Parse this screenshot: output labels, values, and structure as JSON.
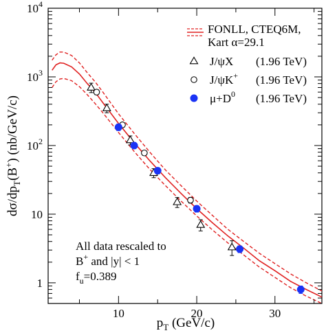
{
  "chart_data": {
    "type": "scatter",
    "xlabel": {
      "main": "p",
      "sub": "T",
      "rest": " (GeV/c)"
    },
    "ylabel": {
      "p1": "dσ/dp",
      "sub": "T",
      "p2": "(B",
      "sup": "+",
      "p3": ") (nb/GeV/c)"
    },
    "xlim": [
      1,
      36
    ],
    "ylim": [
      0.5,
      10000
    ],
    "yscale": "log",
    "x_ticks": [
      10,
      20,
      30
    ],
    "y_ticks": [
      {
        "value": 1,
        "base": "1",
        "exp": ""
      },
      {
        "value": 10,
        "base": "10",
        "exp": ""
      },
      {
        "value": 100,
        "base": "10",
        "exp": "2"
      },
      {
        "value": 1000,
        "base": "10",
        "exp": "3"
      },
      {
        "value": 10000,
        "base": "10",
        "exp": "4"
      }
    ],
    "grid": false,
    "legend_position": "top-right",
    "legend": [
      {
        "kind": "band",
        "lines": [
          "FONLL, CTEQ6M,",
          "Kart α=29.1"
        ]
      },
      {
        "kind": "marker",
        "marker": "triangle",
        "label": "J/ψX",
        "energy": "(1.96 TeV)"
      },
      {
        "kind": "marker",
        "marker": "circle-open",
        "label": "J/ψK",
        "label_sup": "+",
        "energy": "(1.96 TeV)"
      },
      {
        "kind": "marker",
        "marker": "circle-filled",
        "label": "μ+D",
        "label_sup": "0",
        "energy": "(1.96 TeV)"
      }
    ],
    "annotation": {
      "line1": "All data rescaled to",
      "line2": {
        "a": "B",
        "sup": "+",
        "b": " and |y| < 1"
      },
      "line3": {
        "a": "f",
        "sub": "u",
        "b": "=0.389"
      }
    },
    "curves": {
      "central": [
        [
          1.5,
          1250
        ],
        [
          2,
          1500
        ],
        [
          2.5,
          1600
        ],
        [
          3,
          1580
        ],
        [
          4,
          1400
        ],
        [
          5,
          1100
        ],
        [
          6,
          800
        ],
        [
          7,
          600
        ],
        [
          8,
          420
        ],
        [
          10,
          210
        ],
        [
          12,
          110
        ],
        [
          14,
          60
        ],
        [
          16,
          34
        ],
        [
          18,
          20
        ],
        [
          20,
          12
        ],
        [
          22,
          7.5
        ],
        [
          24,
          4.8
        ],
        [
          26,
          3.2
        ],
        [
          28,
          2.1
        ],
        [
          30,
          1.5
        ],
        [
          32,
          1.05
        ],
        [
          34,
          0.8
        ],
        [
          36,
          0.62
        ]
      ],
      "upper": [
        [
          1.5,
          1750
        ],
        [
          2,
          2100
        ],
        [
          2.5,
          2300
        ],
        [
          3,
          2300
        ],
        [
          4,
          2050
        ],
        [
          5,
          1600
        ],
        [
          6,
          1150
        ],
        [
          7,
          850
        ],
        [
          8,
          600
        ],
        [
          10,
          290
        ],
        [
          12,
          150
        ],
        [
          14,
          80
        ],
        [
          16,
          44
        ],
        [
          18,
          26
        ],
        [
          20,
          15.5
        ],
        [
          22,
          9.6
        ],
        [
          24,
          6
        ],
        [
          26,
          4
        ],
        [
          28,
          2.7
        ],
        [
          30,
          1.9
        ],
        [
          32,
          1.35
        ],
        [
          34,
          1
        ],
        [
          36,
          0.76
        ]
      ],
      "lower": [
        [
          1.5,
          700
        ],
        [
          2,
          850
        ],
        [
          2.5,
          930
        ],
        [
          3,
          950
        ],
        [
          4,
          880
        ],
        [
          5,
          720
        ],
        [
          6,
          550
        ],
        [
          7,
          410
        ],
        [
          8,
          300
        ],
        [
          10,
          155
        ],
        [
          12,
          82
        ],
        [
          14,
          45
        ],
        [
          16,
          26
        ],
        [
          18,
          15.5
        ],
        [
          20,
          9.4
        ],
        [
          22,
          5.9
        ],
        [
          24,
          3.8
        ],
        [
          26,
          2.55
        ],
        [
          28,
          1.7
        ],
        [
          30,
          1.2
        ],
        [
          32,
          0.85
        ],
        [
          34,
          0.64
        ],
        [
          36,
          0.5
        ]
      ]
    },
    "series": [
      {
        "name": "J/ψX (1.96 TeV)",
        "marker": "triangle",
        "points": [
          {
            "x": 6.5,
            "y": 700,
            "err": 110
          },
          {
            "x": 8.5,
            "y": 350,
            "err": 50
          },
          {
            "x": 11.5,
            "y": 120,
            "err": 18
          },
          {
            "x": 14.5,
            "y": 40,
            "err": 6
          },
          {
            "x": 17.5,
            "y": 15,
            "err": 2.5
          },
          {
            "x": 20.5,
            "y": 7,
            "err": 1.3
          },
          {
            "x": 24.5,
            "y": 3.3,
            "err": 0.8
          }
        ]
      },
      {
        "name": "J/ψK+ (1.96 TeV)",
        "marker": "circle-open",
        "points": [
          {
            "x": 7.2,
            "y": 600,
            "err": 50
          },
          {
            "x": 10.5,
            "y": 200,
            "err": 15
          },
          {
            "x": 13.3,
            "y": 78,
            "err": 6
          },
          {
            "x": 19.2,
            "y": 16,
            "err": 1.5
          }
        ]
      },
      {
        "name": "μ+D0 (1.96 TeV)",
        "marker": "circle-filled",
        "points": [
          {
            "x": 10,
            "y": 185,
            "err": 20
          },
          {
            "x": 12,
            "y": 100,
            "err": 10
          },
          {
            "x": 15,
            "y": 43,
            "err": 4.5
          },
          {
            "x": 20,
            "y": 12,
            "err": 1.3
          },
          {
            "x": 25.5,
            "y": 3.1,
            "err": 0.35
          },
          {
            "x": 33.3,
            "y": 0.8,
            "err": 0.1
          }
        ]
      }
    ],
    "colors": {
      "theory": "#e02020",
      "blue": "#1a33f5",
      "black": "#000000"
    }
  }
}
